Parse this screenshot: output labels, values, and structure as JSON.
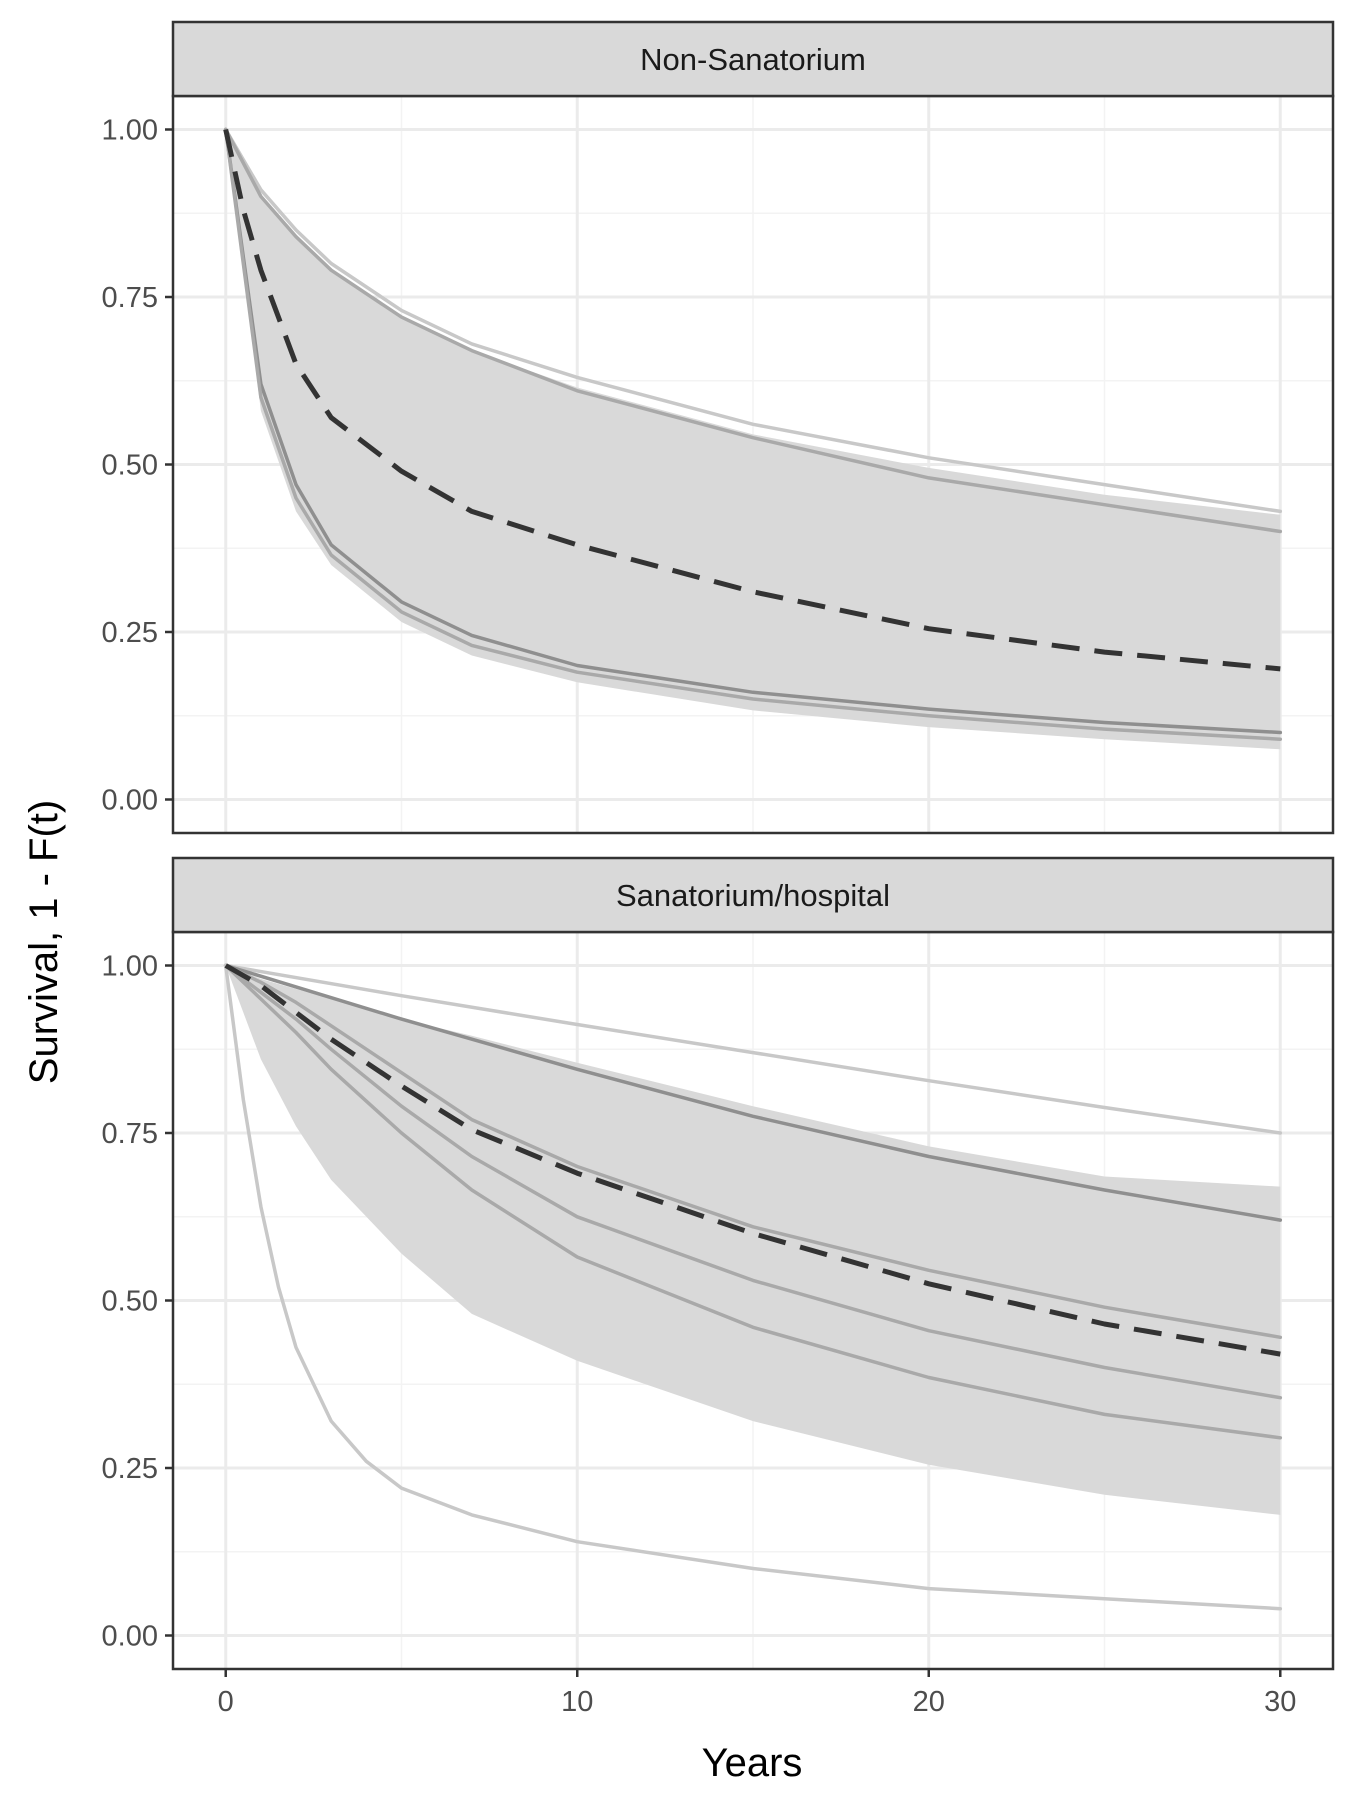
{
  "chart_data": {
    "type": "line",
    "xlabel": "Years",
    "ylabel": "Survival, 1 - F(t)",
    "xlim": [
      -1.5,
      31.5
    ],
    "ylim": [
      -0.05,
      1.05
    ],
    "x_ticks": [
      0,
      10,
      20,
      30
    ],
    "x_tick_labels": [
      "0",
      "10",
      "20",
      "30"
    ],
    "y_ticks": [
      0,
      0.25,
      0.5,
      0.75,
      1.0
    ],
    "y_tick_labels": [
      "0.00",
      "0.25",
      "0.50",
      "0.75",
      "1.00"
    ],
    "grid": true,
    "colors": {
      "band": "#d9d9d9",
      "line_light": "#c8c8c8",
      "line_mid": "#a9a9a9",
      "line_dark": "#8f8f8f",
      "dashed": "#333333",
      "strip": "#d9d9d9",
      "grid_major": "#ebebeb",
      "grid_minor": "#f3f3f3",
      "panel_border": "#333333"
    },
    "panels": [
      {
        "strip": "Non-Sanatorium",
        "band": {
          "x": [
            0,
            1,
            2,
            3,
            5,
            7,
            10,
            15,
            20,
            25,
            30
          ],
          "lower": [
            1.0,
            0.58,
            0.43,
            0.35,
            0.265,
            0.215,
            0.175,
            0.133,
            0.108,
            0.09,
            0.075
          ],
          "upper": [
            1.0,
            0.9,
            0.84,
            0.79,
            0.72,
            0.67,
            0.615,
            0.545,
            0.495,
            0.455,
            0.425
          ]
        },
        "series": [
          {
            "style": "light",
            "x": [
              0,
              1,
              2,
              3,
              5,
              7,
              10,
              15,
              20,
              25,
              30
            ],
            "y": [
              1.0,
              0.91,
              0.85,
              0.8,
              0.73,
              0.68,
              0.63,
              0.56,
              0.51,
              0.47,
              0.43
            ]
          },
          {
            "style": "mid",
            "x": [
              0,
              1,
              2,
              3,
              5,
              7,
              10,
              15,
              20,
              25,
              30
            ],
            "y": [
              1.0,
              0.9,
              0.84,
              0.79,
              0.72,
              0.67,
              0.61,
              0.54,
              0.48,
              0.44,
              0.4
            ]
          },
          {
            "style": "dark",
            "x": [
              0,
              1,
              2,
              3,
              5,
              7,
              10,
              15,
              20,
              25,
              30
            ],
            "y": [
              1.0,
              0.62,
              0.47,
              0.38,
              0.295,
              0.245,
              0.2,
              0.16,
              0.135,
              0.115,
              0.1
            ]
          },
          {
            "style": "mid",
            "x": [
              0,
              1,
              2,
              3,
              5,
              7,
              10,
              15,
              20,
              25,
              30
            ],
            "y": [
              1.0,
              0.6,
              0.45,
              0.365,
              0.28,
              0.23,
              0.19,
              0.15,
              0.125,
              0.105,
              0.09
            ]
          },
          {
            "style": "dashed",
            "x": [
              0,
              0.5,
              1,
              2,
              3,
              5,
              7,
              10,
              15,
              20,
              25,
              30
            ],
            "y": [
              1.0,
              0.88,
              0.79,
              0.65,
              0.57,
              0.49,
              0.43,
              0.38,
              0.31,
              0.255,
              0.22,
              0.195
            ]
          }
        ]
      },
      {
        "strip": "Sanatorium/hospital",
        "band": {
          "x": [
            0,
            1,
            2,
            3,
            5,
            7,
            10,
            15,
            20,
            25,
            30
          ],
          "lower": [
            1.0,
            0.86,
            0.76,
            0.68,
            0.57,
            0.48,
            0.41,
            0.32,
            0.255,
            0.21,
            0.18
          ],
          "upper": [
            1.0,
            0.98,
            0.965,
            0.95,
            0.92,
            0.895,
            0.855,
            0.79,
            0.73,
            0.685,
            0.67
          ]
        },
        "series": [
          {
            "style": "light",
            "x": [
              0,
              5,
              10,
              15,
              20,
              25,
              30
            ],
            "y": [
              1.0,
              0.955,
              0.912,
              0.87,
              0.828,
              0.788,
              0.75
            ]
          },
          {
            "style": "dark",
            "x": [
              0,
              5,
              10,
              15,
              20,
              25,
              30
            ],
            "y": [
              1.0,
              0.92,
              0.845,
              0.775,
              0.715,
              0.665,
              0.62
            ]
          },
          {
            "style": "mid",
            "x": [
              0,
              1,
              2,
              3,
              5,
              7,
              10,
              15,
              20,
              25,
              30
            ],
            "y": [
              1.0,
              0.975,
              0.945,
              0.91,
              0.84,
              0.77,
              0.7,
              0.61,
              0.545,
              0.49,
              0.445
            ]
          },
          {
            "style": "mid",
            "x": [
              0,
              1,
              2,
              3,
              5,
              7,
              10,
              15,
              20,
              25,
              30
            ],
            "y": [
              1.0,
              0.96,
              0.92,
              0.875,
              0.79,
              0.715,
              0.625,
              0.53,
              0.455,
              0.4,
              0.355
            ]
          },
          {
            "style": "mid",
            "x": [
              0,
              1,
              2,
              3,
              5,
              7,
              10,
              15,
              20,
              25,
              30
            ],
            "y": [
              1.0,
              0.95,
              0.9,
              0.845,
              0.75,
              0.665,
              0.565,
              0.46,
              0.385,
              0.33,
              0.295
            ]
          },
          {
            "style": "light",
            "x": [
              0,
              0.5,
              1,
              1.5,
              2,
              3,
              4,
              5,
              7,
              10,
              15,
              20,
              25,
              30
            ],
            "y": [
              1.0,
              0.8,
              0.64,
              0.52,
              0.43,
              0.32,
              0.26,
              0.22,
              0.18,
              0.14,
              0.1,
              0.07,
              0.055,
              0.04
            ]
          },
          {
            "style": "dashed",
            "x": [
              0,
              1,
              2,
              3,
              5,
              7,
              10,
              15,
              20,
              25,
              30
            ],
            "y": [
              1.0,
              0.97,
              0.93,
              0.89,
              0.82,
              0.755,
              0.69,
              0.6,
              0.525,
              0.465,
              0.42
            ]
          }
        ]
      }
    ]
  }
}
